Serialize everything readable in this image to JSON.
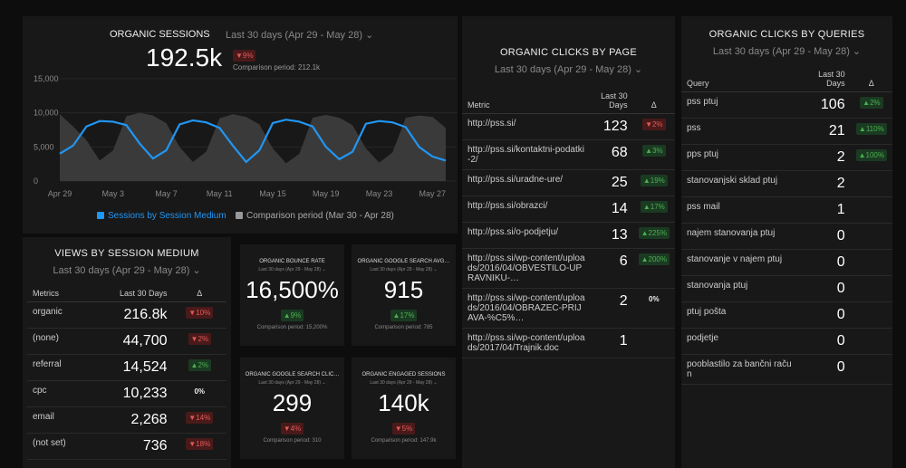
{
  "sessions": {
    "title": "ORGANIC SESSIONS",
    "period": "Last 30 days (Apr 29 - May 28)",
    "value": "192.5k",
    "delta": {
      "text": "9%",
      "dir": "down"
    },
    "comparison": "Comparison period: 212.1k",
    "chart": {
      "type": "line",
      "categories": [
        "Apr 29",
        null,
        null,
        null,
        "May 3",
        null,
        null,
        null,
        "May 7",
        null,
        null,
        null,
        "May 11",
        null,
        null,
        null,
        "May 15",
        null,
        null,
        null,
        "May 19",
        null,
        null,
        null,
        "May 23",
        null,
        null,
        null,
        "May 27",
        null
      ],
      "series": [
        {
          "name": "Sessions by Session Medium",
          "color": "#2196f3",
          "values": [
            4000,
            5200,
            8000,
            8800,
            8700,
            8200,
            5500,
            3300,
            4500,
            8300,
            8900,
            8600,
            7800,
            5200,
            2800,
            4500,
            8500,
            9000,
            8700,
            8000,
            5000,
            3200,
            4300,
            8400,
            8800,
            8600,
            7900,
            5000,
            3600,
            3000
          ]
        },
        {
          "name": "Comparison period (Mar 30 - Apr 28)",
          "color": "#3a3a3a",
          "values": [
            9800,
            8000,
            6000,
            3000,
            4500,
            9500,
            10000,
            9600,
            8500,
            5000,
            2800,
            4300,
            9200,
            9800,
            9400,
            8300,
            4800,
            2600,
            4000,
            9300,
            9700,
            9300,
            8200,
            4800,
            2700,
            4200,
            9300,
            9600,
            9400,
            7800
          ]
        }
      ],
      "ylim": [
        0,
        15000
      ],
      "yticks": [
        0,
        {
          "value": 5000,
          "label": "5,000"
        },
        {
          "value": 10000,
          "label": "10,000"
        },
        {
          "value": 15000,
          "label": "15,000"
        }
      ]
    }
  },
  "views": {
    "title": "VIEWS BY SESSION MEDIUM",
    "period": "Last 30 days (Apr 29 - May 28)",
    "columns": [
      "Metrics",
      "Last 30 Days",
      "Δ"
    ],
    "rows": [
      [
        "organic",
        "216.8k",
        {
          "text": "10%",
          "dir": "down"
        }
      ],
      [
        "(none)",
        "44,700",
        {
          "text": "2%",
          "dir": "down"
        }
      ],
      [
        "referral",
        "14,524",
        {
          "text": "2%",
          "dir": "up"
        }
      ],
      [
        "cpc",
        "10,233",
        {
          "text": "0%"
        }
      ],
      [
        "email",
        "2,268",
        {
          "text": "14%",
          "dir": "down"
        }
      ],
      [
        "(not set)",
        "736",
        {
          "text": "18%",
          "dir": "down"
        }
      ]
    ]
  },
  "kpis": [
    {
      "title": "ORGANIC BOUNCE RATE",
      "period": "Last 30 days (Apr 29 - May 28)",
      "value": "16,500%",
      "delta": {
        "text": "9%",
        "dir": "up"
      },
      "comparison": "Comparison period: 15,200%"
    },
    {
      "title": "ORGANIC GOOGLE SEARCH AVG…",
      "period": "Last 30 days (Apr 29 - May 28)",
      "value": "915",
      "delta": {
        "text": "17%",
        "dir": "up"
      },
      "comparison": "Comparison period: 785"
    },
    {
      "title": "ORGANIC GOOGLE SEARCH CLIC…",
      "period": "Last 30 days (Apr 29 - May 28)",
      "value": "299",
      "delta": {
        "text": "4%",
        "dir": "down"
      },
      "comparison": "Comparison period: 310"
    },
    {
      "title": "ORGANIC ENGAGED SESSIONS",
      "period": "Last 30 days (Apr 29 - May 28)",
      "value": "140k",
      "delta": {
        "text": "5%",
        "dir": "down"
      },
      "comparison": "Comparison period: 147.9k"
    }
  ],
  "pages": {
    "title": "ORGANIC CLICKS BY PAGE",
    "period": "Last 30 days (Apr 29 - May 28)",
    "columns": [
      "Metric",
      "Last 30 Days",
      "Δ"
    ],
    "rows": [
      [
        "http://pss.si/",
        "123",
        {
          "text": "2%",
          "dir": "down"
        }
      ],
      [
        "http://pss.si/kontaktni-podatki-2/",
        "68",
        {
          "text": "3%",
          "dir": "up"
        }
      ],
      [
        "http://pss.si/uradne-ure/",
        "25",
        {
          "text": "19%",
          "dir": "up"
        }
      ],
      [
        "http://pss.si/obrazci/",
        "14",
        {
          "text": "17%",
          "dir": "up"
        }
      ],
      [
        "http://pss.si/o-podjetju/",
        "13",
        {
          "text": "225%",
          "dir": "up"
        }
      ],
      [
        "http://pss.si/wp-content/uploads/2016/04/OBVESTILO-UPRAVNIKU-…",
        "6",
        {
          "text": "200%",
          "dir": "up"
        }
      ],
      [
        "http://pss.si/wp-content/uploads/2016/04/OBRAZEC-PRIJAVA-%C5%…",
        "2",
        {
          "text": "0%"
        }
      ],
      [
        "http://pss.si/wp-content/uploads/2017/04/Trajnik.doc",
        "1"
      ]
    ]
  },
  "queries": {
    "title": "ORGANIC CLICKS BY QUERIES",
    "period": "Last 30 days (Apr 29 - May 28)",
    "columns": [
      "Query",
      "Last 30 Days",
      "Δ"
    ],
    "rows": [
      [
        "pss ptuj",
        "106",
        {
          "text": "2%",
          "dir": "up"
        }
      ],
      [
        "pss",
        "21",
        {
          "text": "110%",
          "dir": "up"
        }
      ],
      [
        "pps ptuj",
        "2",
        {
          "text": "100%",
          "dir": "up"
        }
      ],
      [
        "stanovanjski sklad ptuj",
        "2"
      ],
      [
        "pss mail",
        "1"
      ],
      [
        "najem stanovanja ptuj",
        "0"
      ],
      [
        "stanovanje v najem ptuj",
        "0"
      ],
      [
        "stanovanja ptuj",
        "0"
      ],
      [
        "ptuj pošta",
        "0"
      ],
      [
        "podjetje",
        "0"
      ],
      [
        "pooblastilo za bančni račun",
        "0"
      ]
    ]
  }
}
